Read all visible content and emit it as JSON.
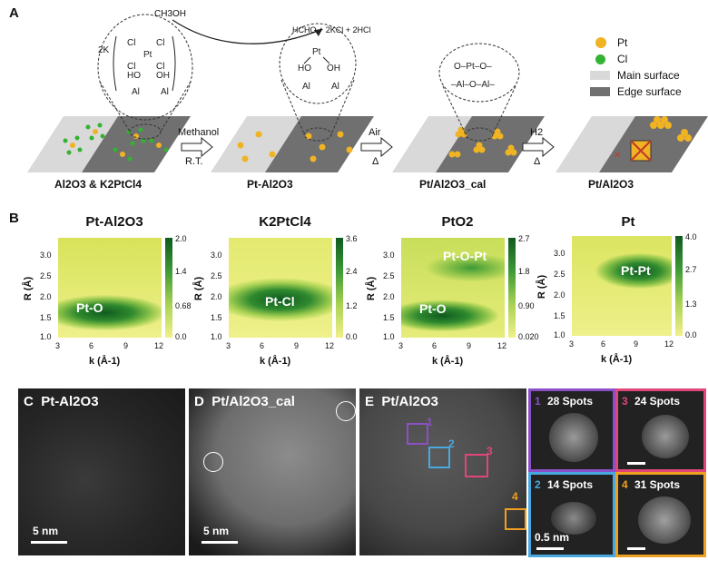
{
  "panelA": {
    "letter": "A",
    "methanol_reagent": "CH3OH",
    "products": "HCHO + 2KCl + 2HCl",
    "coef_2k": "2K",
    "stages": [
      "Al2O3 & K2PtCl4",
      "Pt-Al2O3",
      "Pt/Al2O3_cal",
      "Pt/Al2O3"
    ],
    "arrows": [
      {
        "top": "Methanol",
        "bottom": "R.T."
      },
      {
        "top": "Air",
        "bottom": "Δ"
      },
      {
        "top": "H2",
        "bottom": "Δ"
      }
    ],
    "legend": [
      {
        "label": "Pt",
        "color": "#f0b323"
      },
      {
        "label": "Cl",
        "color": "#33b233"
      },
      {
        "label": "Main surface",
        "color": "#d9d9d9"
      },
      {
        "label": "Edge surface",
        "color": "#707070"
      }
    ]
  },
  "panelB": {
    "letter": "B",
    "xlabel": "k (Å-1)",
    "ylabel": "R (Å)",
    "maps": [
      {
        "title": "Pt-Al2O3",
        "features": [
          "Pt-O"
        ],
        "cb_ticks": [
          "2.0",
          "1.4",
          "0.68",
          "0.0"
        ]
      },
      {
        "title": "K2PtCl4",
        "features": [
          "Pt-Cl"
        ],
        "cb_ticks": [
          "3.6",
          "2.4",
          "1.2",
          "0.0"
        ]
      },
      {
        "title": "PtO2",
        "features": [
          "Pt-O-Pt",
          "Pt-O"
        ],
        "cb_ticks": [
          "2.7",
          "1.8",
          "0.90",
          "0.020"
        ]
      },
      {
        "title": "Pt",
        "features": [
          "Pt-Pt"
        ],
        "cb_ticks": [
          "4.0",
          "2.7",
          "1.3",
          "0.0"
        ]
      }
    ],
    "xticks": [
      "3",
      "6",
      "9",
      "12"
    ],
    "yticks": [
      "3.0",
      "2.5",
      "2.0",
      "1.5",
      "1.0"
    ]
  },
  "panelC": {
    "letter": "C",
    "title": "Pt-Al2O3",
    "scale": "5 nm"
  },
  "panelD": {
    "letter": "D",
    "title": "Pt/Al2O3_cal",
    "scale": "5 nm"
  },
  "panelE": {
    "letter": "E",
    "title": "Pt/Al2O3",
    "boxes": [
      "1",
      "2",
      "3",
      "4"
    ],
    "insets": [
      {
        "num": "1",
        "text": "28 Spots",
        "color": "#8b4fc7"
      },
      {
        "num": "3",
        "text": "24 Spots",
        "color": "#e0457b"
      },
      {
        "num": "2",
        "text": "14 Spots",
        "color": "#4aa8e0"
      },
      {
        "num": "4",
        "text": "31 Spots",
        "color": "#f0a020"
      }
    ],
    "inset_scale": "0.5 nm"
  }
}
